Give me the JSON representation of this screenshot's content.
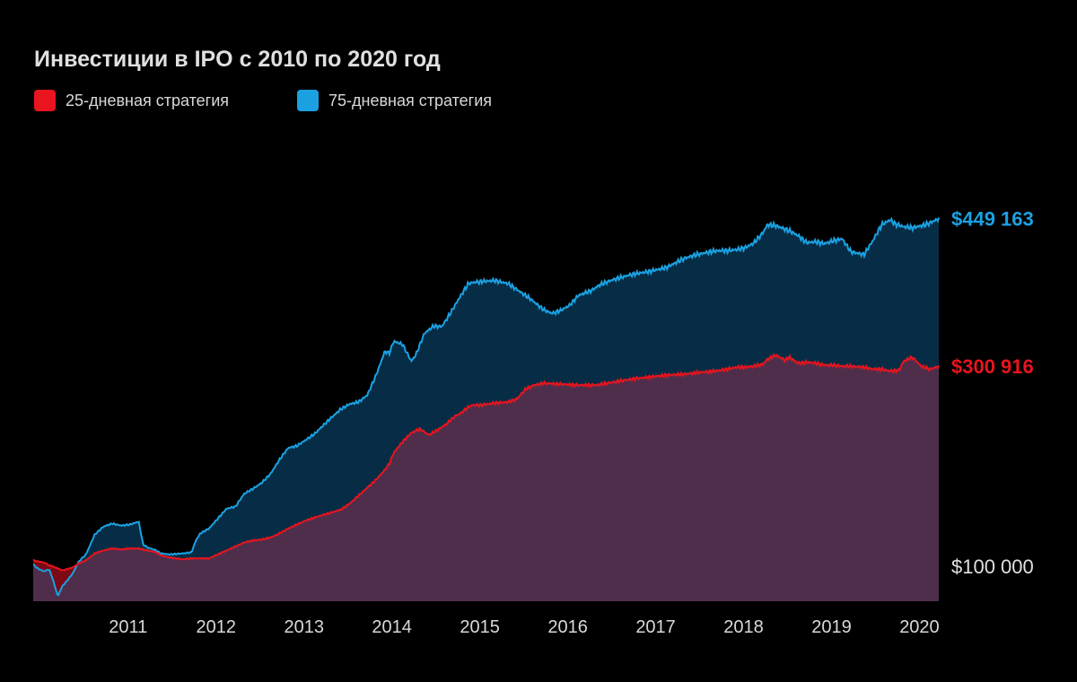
{
  "chart_data": {
    "type": "area",
    "title": "Инвестиции в IPO с 2010 по 2020 год",
    "x_ticks": [
      "2011",
      "2012",
      "2013",
      "2014",
      "2015",
      "2016",
      "2017",
      "2018",
      "2019",
      "2020"
    ],
    "xlim": [
      2010.0,
      2020.3
    ],
    "ylim": [
      65000,
      520000
    ],
    "baseline_value": 100000,
    "baseline_label": "$100 000",
    "legend_position": "top-left",
    "grid": false,
    "colors": {
      "background": "#000000",
      "red_line": "#e8141e",
      "red_fill": "#4f2e4b",
      "blue_line": "#1ba1e2",
      "blue_fill": "#062d45",
      "red_above_fill": "#7a0a14"
    },
    "series": [
      {
        "name": "75-дневная стратегия",
        "color": "#1ba1e2",
        "end_label": "$449 163",
        "x": [
          2010.0,
          2010.05,
          2010.12,
          2010.18,
          2010.22,
          2010.28,
          2010.33,
          2010.38,
          2010.45,
          2010.52,
          2010.6,
          2010.7,
          2010.8,
          2010.9,
          2011.0,
          2011.1,
          2011.2,
          2011.25,
          2011.3,
          2011.4,
          2011.45,
          2011.55,
          2011.7,
          2011.8,
          2011.85,
          2011.9,
          2012.0,
          2012.1,
          2012.2,
          2012.3,
          2012.4,
          2012.5,
          2012.6,
          2012.7,
          2012.8,
          2012.9,
          2013.0,
          2013.05,
          2013.2,
          2013.35,
          2013.5,
          2013.6,
          2013.7,
          2013.8,
          2013.9,
          2014.0,
          2014.05,
          2014.1,
          2014.2,
          2014.3,
          2014.35,
          2014.45,
          2014.55,
          2014.65,
          2014.75,
          2014.85,
          2014.95,
          2015.0,
          2015.1,
          2015.25,
          2015.4,
          2015.5,
          2015.65,
          2015.8,
          2015.9,
          2016.0,
          2016.1,
          2016.2,
          2016.35,
          2016.45,
          2016.6,
          2016.8,
          2017.0,
          2017.2,
          2017.4,
          2017.5,
          2017.6,
          2017.7,
          2017.8,
          2017.9,
          2018.0,
          2018.1,
          2018.2,
          2018.3,
          2018.35,
          2018.45,
          2018.6,
          2018.7,
          2018.8,
          2018.9,
          2019.0,
          2019.1,
          2019.2,
          2019.3,
          2019.45,
          2019.55,
          2019.65,
          2019.75,
          2019.8,
          2019.9,
          2020.0,
          2020.15,
          2020.3
        ],
        "y": [
          102000,
          98000,
          95000,
          97000,
          88000,
          70000,
          80000,
          85000,
          93000,
          105000,
          112000,
          132000,
          140000,
          143000,
          141000,
          142000,
          145000,
          122000,
          119000,
          116000,
          113000,
          112000,
          113000,
          114000,
          126000,
          133000,
          138000,
          148000,
          158000,
          160000,
          173000,
          178000,
          184000,
          193000,
          207000,
          219000,
          221000,
          224000,
          233000,
          246000,
          258000,
          263000,
          265000,
          272000,
          292000,
          316000,
          314000,
          326000,
          323000,
          306000,
          312000,
          334000,
          341000,
          341000,
          355000,
          370000,
          384000,
          385000,
          386000,
          387000,
          384000,
          378000,
          369000,
          358000,
          354000,
          357000,
          362000,
          372000,
          377000,
          383000,
          388000,
          393000,
          396000,
          400000,
          409000,
          412000,
          414000,
          416000,
          417000,
          417000,
          418000,
          420000,
          425000,
          435000,
          443000,
          442000,
          437000,
          432000,
          425000,
          426000,
          424000,
          427000,
          429000,
          416000,
          413000,
          427000,
          443000,
          448000,
          444000,
          441000,
          440000,
          443000,
          449163
        ]
      },
      {
        "name": "25-дневная стратегия",
        "color": "#e8141e",
        "end_label": "$300 916",
        "x": [
          2010.0,
          2010.05,
          2010.12,
          2010.18,
          2010.22,
          2010.28,
          2010.33,
          2010.38,
          2010.45,
          2010.52,
          2010.6,
          2010.7,
          2010.8,
          2010.9,
          2011.0,
          2011.1,
          2011.2,
          2011.3,
          2011.4,
          2011.45,
          2011.55,
          2011.7,
          2011.8,
          2011.9,
          2012.0,
          2012.1,
          2012.2,
          2012.3,
          2012.4,
          2012.5,
          2012.6,
          2012.7,
          2012.8,
          2012.9,
          2013.0,
          2013.1,
          2013.2,
          2013.35,
          2013.5,
          2013.6,
          2013.7,
          2013.8,
          2013.9,
          2014.0,
          2014.05,
          2014.1,
          2014.2,
          2014.3,
          2014.4,
          2014.5,
          2014.6,
          2014.7,
          2014.8,
          2014.85,
          2014.95,
          2015.0,
          2015.1,
          2015.25,
          2015.4,
          2015.5,
          2015.6,
          2015.7,
          2015.8,
          2016.0,
          2016.2,
          2016.4,
          2016.6,
          2016.8,
          2017.0,
          2017.2,
          2017.4,
          2017.6,
          2017.75,
          2017.9,
          2018.0,
          2018.1,
          2018.2,
          2018.3,
          2018.35,
          2018.45,
          2018.55,
          2018.6,
          2018.7,
          2018.8,
          2018.9,
          2019.0,
          2019.1,
          2019.2,
          2019.3,
          2019.45,
          2019.55,
          2019.65,
          2019.75,
          2019.85,
          2019.9,
          2020.0,
          2020.1,
          2020.2,
          2020.3
        ],
        "y": [
          106000,
          105000,
          104000,
          101000,
          100000,
          98000,
          96000,
          97000,
          99000,
          103000,
          106000,
          113000,
          116000,
          118000,
          117000,
          118000,
          118000,
          116000,
          114000,
          111000,
          109000,
          107000,
          108000,
          108000,
          108000,
          112000,
          116000,
          120000,
          124000,
          126000,
          127000,
          129000,
          133000,
          138000,
          142000,
          146000,
          149000,
          153000,
          157000,
          163000,
          171000,
          179000,
          187000,
          197000,
          203000,
          214000,
          225000,
          234000,
          238000,
          232000,
          237000,
          243000,
          251000,
          253000,
          260000,
          262000,
          262000,
          264000,
          265000,
          268000,
          278000,
          282000,
          284000,
          283000,
          282000,
          282000,
          285000,
          288000,
          290000,
          292000,
          293000,
          295000,
          296000,
          298000,
          300000,
          300000,
          301000,
          303000,
          308000,
          312000,
          307000,
          310000,
          304000,
          305000,
          304000,
          302000,
          302000,
          301000,
          301000,
          300000,
          298000,
          298000,
          296000,
          297000,
          306000,
          310000,
          301000,
          298000,
          300916
        ]
      }
    ]
  }
}
